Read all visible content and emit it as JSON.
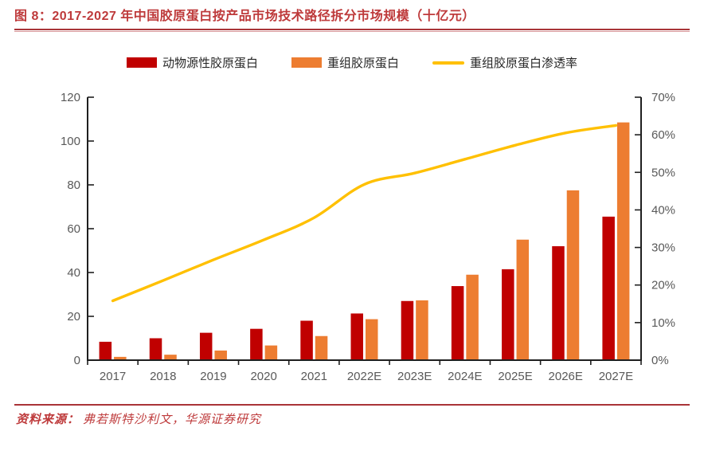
{
  "figure": {
    "title": "图 8：2017-2027 年中国胶原蛋白按产品市场技术路径拆分市场规模（十亿元）",
    "source_label": "资料来源：",
    "source_text": "弗若斯特沙利文，华源证券研究"
  },
  "colors": {
    "title_red": "#BE3A3B",
    "rule_red": "#A93438",
    "animal_bar": "#C00000",
    "recombinant_bar": "#ED7D31",
    "penetration_line": "#FFC000",
    "axis_line": "#1F1F1F",
    "tick_label_gray": "#595959",
    "legend_text": "#262626"
  },
  "chart_data": {
    "type": "bar",
    "subtype": "grouped bars with secondary-axis line",
    "title": "2017-2027 年中国胶原蛋白按产品市场技术路径拆分市场规模（十亿元）",
    "categories": [
      "2017",
      "2018",
      "2019",
      "2020",
      "2021",
      "2022E",
      "2023E",
      "2024E",
      "2025E",
      "2026E",
      "2027E"
    ],
    "series": [
      {
        "name": "动物源性胶原蛋白",
        "type": "bar",
        "axis": "left",
        "color": "#C00000",
        "values": [
          8.4,
          10.0,
          12.5,
          14.3,
          18.0,
          21.3,
          27.0,
          33.8,
          41.5,
          52.0,
          65.5
        ]
      },
      {
        "name": "重组胶原蛋白",
        "type": "bar",
        "axis": "left",
        "color": "#ED7D31",
        "values": [
          1.5,
          2.5,
          4.4,
          6.7,
          11.0,
          18.7,
          27.3,
          39.0,
          55.0,
          77.5,
          108.5
        ]
      },
      {
        "name": "重组胶原蛋白渗透率",
        "type": "line",
        "axis": "right",
        "color": "#FFC000",
        "values": [
          15.8,
          21.2,
          26.7,
          32.0,
          37.9,
          46.8,
          49.8,
          53.5,
          57.2,
          60.5,
          62.5
        ]
      }
    ],
    "left_axis": {
      "min": 0,
      "max": 120,
      "step": 20,
      "ticks": [
        "0",
        "20",
        "40",
        "60",
        "80",
        "100",
        "120"
      ]
    },
    "right_axis": {
      "min": 0,
      "max": 70,
      "step": 10,
      "ticks": [
        "0%",
        "10%",
        "20%",
        "30%",
        "40%",
        "50%",
        "60%",
        "70%"
      ],
      "unit": "%"
    },
    "legend_position": "top-center",
    "grid": false
  }
}
